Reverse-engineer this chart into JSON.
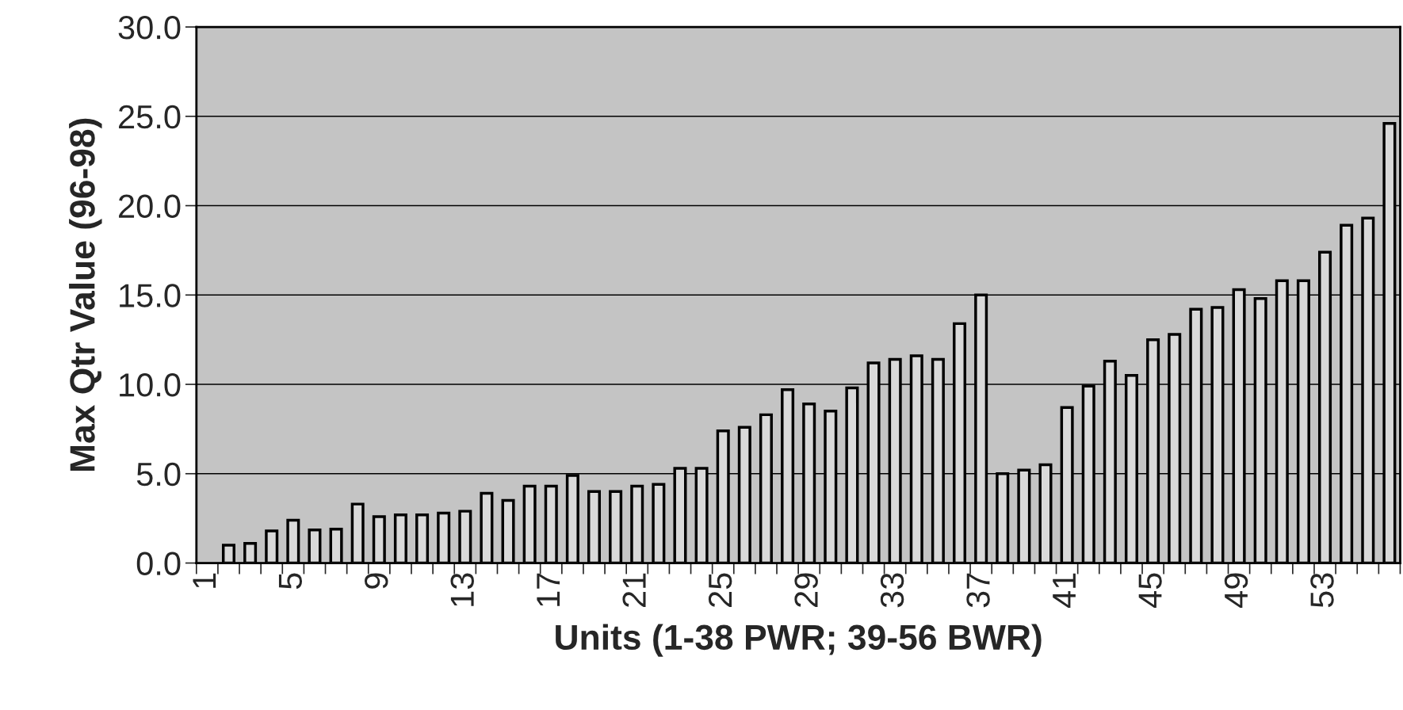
{
  "chart_data": {
    "type": "bar",
    "xlabel": "Units (1-38 PWR; 39-56 BWR)",
    "ylabel": "Max Qtr Value (96-98)",
    "categories": [
      "1",
      null,
      null,
      null,
      "5",
      null,
      null,
      null,
      "9",
      null,
      null,
      null,
      "13",
      null,
      null,
      null,
      "17",
      null,
      null,
      null,
      "21",
      null,
      null,
      null,
      "25",
      null,
      null,
      null,
      "29",
      null,
      null,
      null,
      "33",
      null,
      null,
      null,
      "37",
      null,
      null,
      null,
      "41",
      null,
      null,
      null,
      "45",
      null,
      null,
      null,
      "49",
      null,
      null,
      null,
      "53",
      null,
      null,
      null
    ],
    "values": [
      null,
      1.0,
      1.1,
      1.8,
      2.4,
      1.85,
      1.9,
      3.3,
      2.6,
      2.7,
      2.7,
      2.8,
      2.9,
      3.9,
      3.5,
      4.3,
      4.3,
      4.9,
      4.0,
      4.0,
      4.3,
      4.4,
      5.3,
      5.3,
      7.4,
      7.6,
      8.3,
      9.7,
      8.9,
      8.5,
      9.8,
      11.2,
      11.4,
      11.6,
      11.4,
      13.4,
      15.0,
      5.0,
      5.2,
      5.5,
      8.7,
      9.9,
      11.3,
      10.5,
      12.5,
      12.8,
      14.2,
      14.3,
      15.3,
      14.8,
      15.8,
      15.8,
      17.4,
      18.9,
      19.3,
      24.6
    ],
    "color": "#d9d9d9",
    "ylim": [
      0,
      30
    ],
    "yticks": [
      {
        "value": 0,
        "label": "0.0"
      },
      {
        "value": 5,
        "label": "5.0"
      },
      {
        "value": 10,
        "label": "10.0"
      },
      {
        "value": 15,
        "label": "15.0"
      },
      {
        "value": 20,
        "label": "20.0"
      },
      {
        "value": 25,
        "label": "25.0"
      },
      {
        "value": 30,
        "label": "30.0"
      }
    ],
    "grid": "y"
  }
}
